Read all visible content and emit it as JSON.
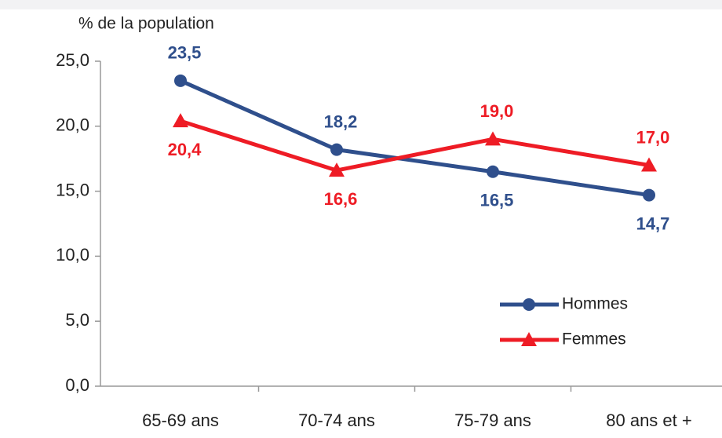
{
  "chart_data": {
    "type": "line",
    "y_label": "% de la population",
    "categories": [
      "65-69 ans",
      "70-74 ans",
      "75-79 ans",
      "80 ans et +"
    ],
    "series": [
      {
        "name": "Hommes",
        "color": "#2f4f8c",
        "marker": "circle",
        "values": [
          23.5,
          18.2,
          16.5,
          14.7
        ],
        "value_labels": [
          "23,5",
          "18,2",
          "16,5",
          "14,7"
        ]
      },
      {
        "name": "Femmes",
        "color": "#ee1c25",
        "marker": "triangle",
        "values": [
          20.4,
          16.6,
          19.0,
          17.0
        ],
        "value_labels": [
          "20,4",
          "16,6",
          "19,0",
          "17,0"
        ]
      }
    ],
    "ylim": [
      0,
      25
    ],
    "yticks": [
      {
        "value": 0,
        "label": "0,0"
      },
      {
        "value": 5,
        "label": "5,0"
      },
      {
        "value": 10,
        "label": "10,0"
      },
      {
        "value": 15,
        "label": "15,0"
      },
      {
        "value": 20,
        "label": "20,0"
      },
      {
        "value": 25,
        "label": "25,0"
      }
    ],
    "grid": false
  }
}
